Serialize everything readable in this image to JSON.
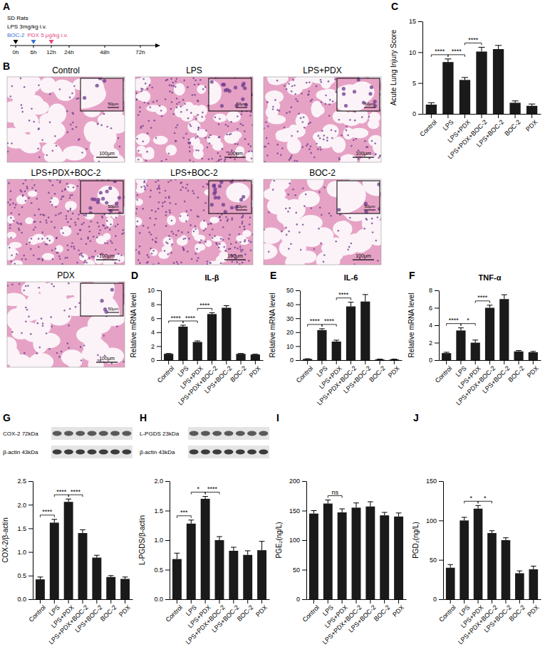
{
  "timeline": {
    "panel": "A",
    "title": "SD Rats",
    "ticks": [
      "0h",
      "6h",
      "12h",
      "24h",
      "48h",
      "72h"
    ],
    "events": [
      {
        "label": "LPS 3mg/kg i.v.",
        "at": "0h",
        "color": "#000000"
      },
      {
        "label": "BOC-2",
        "at": "6h",
        "color": "#3a6fd6"
      },
      {
        "label": "PDX 5 μg/kg i.v.",
        "at": "12h",
        "color": "#e2477f"
      }
    ]
  },
  "histology": {
    "panel": "B",
    "scale_bar": "100μm",
    "inset_scale_bar": "50μm",
    "images": [
      "Control",
      "LPS",
      "LPS+PDX",
      "LPS+PDX+BOC-2",
      "LPS+BOC-2",
      "BOC-2",
      "PDX"
    ]
  },
  "chart_data": [
    {
      "type": "bar",
      "panel": "C",
      "y_label": "Acute Lung Injury Score",
      "categories": [
        "Control",
        "LPS",
        "LPS+PDX",
        "LPS+PDX+BOC-2",
        "LPS+BOC-2",
        "BOC-2",
        "PDX"
      ],
      "values": [
        1.5,
        8.4,
        5.5,
        10.1,
        10.5,
        1.8,
        1.3
      ],
      "errors": [
        0.3,
        0.5,
        0.4,
        0.7,
        0.6,
        0.3,
        0.3
      ],
      "color": "#1a1a1a",
      "ylim": [
        0,
        15
      ],
      "yticks": [
        0,
        5,
        10,
        15
      ],
      "significance": [
        {
          "between": [
            "Control",
            "LPS"
          ],
          "label": "****"
        },
        {
          "between": [
            "LPS",
            "LPS+PDX"
          ],
          "label": "****"
        },
        {
          "between": [
            "LPS+PDX",
            "LPS+PDX+BOC-2"
          ],
          "label": "****"
        }
      ]
    },
    {
      "type": "bar",
      "panel": "D",
      "title": "IL-β",
      "y_label": "Relative mRNA level",
      "categories": [
        "Control",
        "LPS",
        "LPS+PDX",
        "LPS+PDX+BOC-2",
        "LPS+BOC-2",
        "BOC-2",
        "PDX"
      ],
      "values": [
        0.9,
        4.8,
        2.6,
        6.6,
        7.5,
        0.9,
        0.8
      ],
      "errors": [
        0.05,
        0.2,
        0.15,
        0.2,
        0.3,
        0.05,
        0.05
      ],
      "color": "#1a1a1a",
      "ylim": [
        0,
        10
      ],
      "yticks": [
        0,
        2,
        4,
        6,
        8,
        10
      ],
      "significance": [
        {
          "between": [
            "Control",
            "LPS"
          ],
          "label": "****"
        },
        {
          "between": [
            "LPS",
            "LPS+PDX"
          ],
          "label": "****"
        },
        {
          "between": [
            "LPS+PDX",
            "LPS+PDX+BOC-2"
          ],
          "label": "****"
        }
      ]
    },
    {
      "type": "bar",
      "panel": "E",
      "title": "IL-6",
      "y_label": "Relative mRNA level",
      "categories": [
        "Control",
        "LPS",
        "LPS+PDX",
        "LPS+PDX+BOC-2",
        "LPS+BOC-2",
        "BOC-2",
        "PDX"
      ],
      "values": [
        0.8,
        21.5,
        13.3,
        38.5,
        42,
        0.5,
        0.5
      ],
      "errors": [
        0.2,
        1,
        1,
        3,
        5,
        0.2,
        0.2
      ],
      "color": "#1a1a1a",
      "ylim": [
        0,
        50
      ],
      "yticks": [
        0,
        10,
        20,
        30,
        40,
        50
      ],
      "significance": [
        {
          "between": [
            "Control",
            "LPS"
          ],
          "label": "****"
        },
        {
          "between": [
            "LPS",
            "LPS+PDX"
          ],
          "label": "****"
        },
        {
          "between": [
            "LPS+PDX",
            "LPS+PDX+BOC-2"
          ],
          "label": "****"
        }
      ]
    },
    {
      "type": "bar",
      "panel": "F",
      "title": "TNF-α",
      "y_label": "Relative mRNA level",
      "categories": [
        "Control",
        "LPS",
        "LPS+PDX",
        "LPS+PDX+BOC-2",
        "LPS+BOC-2",
        "BOC-2",
        "PDX"
      ],
      "values": [
        0.8,
        3.4,
        2.0,
        6.0,
        7.0,
        1.0,
        0.9
      ],
      "errors": [
        0.1,
        0.3,
        0.3,
        0.3,
        0.5,
        0.1,
        0.1
      ],
      "color": "#1a1a1a",
      "ylim": [
        0,
        8
      ],
      "yticks": [
        0,
        2,
        4,
        6,
        8
      ],
      "significance": [
        {
          "between": [
            "Control",
            "LPS"
          ],
          "label": "****"
        },
        {
          "between": [
            "LPS",
            "LPS+PDX"
          ],
          "label": "*"
        },
        {
          "between": [
            "LPS+PDX",
            "LPS+PDX+BOC-2"
          ],
          "label": "****"
        }
      ]
    },
    {
      "type": "bar",
      "panel": "G",
      "y_label": "COX-2/β-actin",
      "blot": [
        "COX-2 72kDa",
        "β-actin 43kDa"
      ],
      "categories": [
        "Control",
        "LPS",
        "LPS+PDX",
        "LPS+PDX+BOC-2",
        "LPS+BOC-2",
        "BOC-2",
        "PDX"
      ],
      "values": [
        0.42,
        1.62,
        2.06,
        1.4,
        0.88,
        0.47,
        0.43
      ],
      "errors": [
        0.05,
        0.07,
        0.06,
        0.07,
        0.05,
        0.03,
        0.04
      ],
      "color": "#1a1a1a",
      "ylim": [
        0,
        2.5
      ],
      "yticks": [
        {
          "value": 0,
          "label": "0.0"
        },
        0.5,
        {
          "value": 1,
          "label": "1.0"
        },
        1.5,
        {
          "value": 2,
          "label": "2.0"
        },
        2.5
      ],
      "significance": [
        {
          "between": [
            "Control",
            "LPS"
          ],
          "label": "****"
        },
        {
          "between": [
            "LPS",
            "LPS+PDX"
          ],
          "label": "****"
        },
        {
          "between": [
            "LPS+PDX",
            "LPS+PDX+BOC-2"
          ],
          "label": "****"
        }
      ]
    },
    {
      "type": "bar",
      "panel": "H",
      "y_label": "L-PGDS/β-actin",
      "blot": [
        "L-PGDS 23kDa",
        "β-actin 43kDa"
      ],
      "categories": [
        "Control",
        "LPS",
        "LPS+PDX",
        "LPS+PDX+BOC-2",
        "LPS+BOC-2",
        "BOC-2",
        "PDX"
      ],
      "values": [
        0.68,
        1.28,
        1.7,
        1.0,
        0.82,
        0.75,
        0.83
      ],
      "errors": [
        0.1,
        0.06,
        0.04,
        0.06,
        0.06,
        0.07,
        0.15
      ],
      "color": "#1a1a1a",
      "ylim": [
        0,
        2
      ],
      "yticks": [
        {
          "value": 0,
          "label": "0.0"
        },
        0.5,
        {
          "value": 1,
          "label": "1.0"
        },
        1.5,
        {
          "value": 2,
          "label": "2.0"
        }
      ],
      "significance": [
        {
          "between": [
            "Control",
            "LPS"
          ],
          "label": "***"
        },
        {
          "between": [
            "LPS",
            "LPS+PDX"
          ],
          "label": "*"
        },
        {
          "between": [
            "LPS+PDX",
            "LPS+PDX+BOC-2"
          ],
          "label": "****"
        }
      ]
    },
    {
      "type": "bar",
      "panel": "I",
      "y_label": "PGE₂(ng/L)",
      "categories": [
        "Control",
        "LPS",
        "LPS+PDX",
        "LPS+PDX+BOC-2",
        "LPS+BOC-2",
        "BOC-2",
        "PDX"
      ],
      "values": [
        145,
        162,
        147,
        155,
        157,
        142,
        140
      ],
      "errors": [
        5,
        6,
        6,
        8,
        8,
        5,
        6
      ],
      "color": "#1a1a1a",
      "ylim": [
        0,
        200
      ],
      "yticks": [
        0,
        50,
        100,
        150,
        200
      ],
      "significance": [
        {
          "between": [
            "LPS",
            "LPS+PDX"
          ],
          "label": "ns"
        }
      ]
    },
    {
      "type": "bar",
      "panel": "J",
      "y_label": "PGD₂(ng/L)",
      "categories": [
        "Control",
        "LPS",
        "LPS+PDX",
        "LPS+PDX+BOC-2",
        "LPS+BOC-2",
        "BOC-2",
        "PDX"
      ],
      "values": [
        40,
        100,
        115,
        84,
        75,
        33,
        38
      ],
      "errors": [
        4,
        4,
        4,
        3,
        3,
        3,
        4
      ],
      "color": "#1a1a1a",
      "ylim": [
        0,
        150
      ],
      "yticks": [
        0,
        50,
        100,
        150
      ],
      "significance": [
        {
          "between": [
            "LPS",
            "LPS+PDX"
          ],
          "label": "*"
        },
        {
          "between": [
            "LPS+PDX",
            "LPS+PDX+BOC-2"
          ],
          "label": "*"
        }
      ]
    }
  ]
}
